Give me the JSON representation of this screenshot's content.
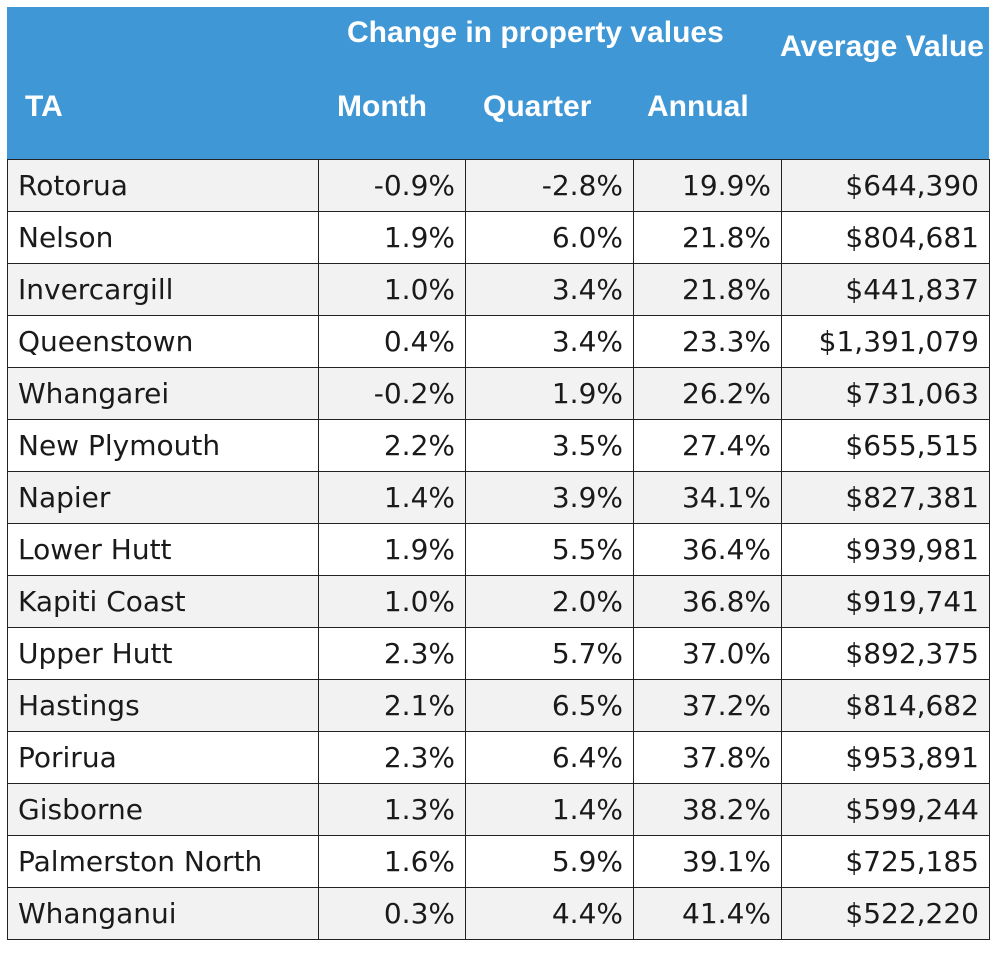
{
  "header": {
    "group_label": "Change in property values",
    "col_ta": "TA",
    "col_month": "Month",
    "col_quarter": "Quarter",
    "col_annual": "Annual",
    "col_average": "Average Value"
  },
  "rows": [
    {
      "ta": "Rotorua",
      "month": "-0.9%",
      "quarter": "-2.8%",
      "annual": "19.9%",
      "value": "$644,390"
    },
    {
      "ta": "Nelson",
      "month": "1.9%",
      "quarter": "6.0%",
      "annual": "21.8%",
      "value": "$804,681"
    },
    {
      "ta": "Invercargill",
      "month": "1.0%",
      "quarter": "3.4%",
      "annual": "21.8%",
      "value": "$441,837"
    },
    {
      "ta": "Queenstown",
      "month": "0.4%",
      "quarter": "3.4%",
      "annual": "23.3%",
      "value": "$1,391,079"
    },
    {
      "ta": "Whangarei",
      "month": "-0.2%",
      "quarter": "1.9%",
      "annual": "26.2%",
      "value": "$731,063"
    },
    {
      "ta": "New Plymouth",
      "month": "2.2%",
      "quarter": "3.5%",
      "annual": "27.4%",
      "value": "$655,515"
    },
    {
      "ta": "Napier",
      "month": "1.4%",
      "quarter": "3.9%",
      "annual": "34.1%",
      "value": "$827,381"
    },
    {
      "ta": "Lower Hutt",
      "month": "1.9%",
      "quarter": "5.5%",
      "annual": "36.4%",
      "value": "$939,981"
    },
    {
      "ta": "Kapiti Coast",
      "month": "1.0%",
      "quarter": "2.0%",
      "annual": "36.8%",
      "value": "$919,741"
    },
    {
      "ta": "Upper Hutt",
      "month": "2.3%",
      "quarter": "5.7%",
      "annual": "37.0%",
      "value": "$892,375"
    },
    {
      "ta": "Hastings",
      "month": "2.1%",
      "quarter": "6.5%",
      "annual": "37.2%",
      "value": "$814,682"
    },
    {
      "ta": "Porirua",
      "month": "2.3%",
      "quarter": "6.4%",
      "annual": "37.8%",
      "value": "$953,891"
    },
    {
      "ta": "Gisborne",
      "month": "1.3%",
      "quarter": "1.4%",
      "annual": "38.2%",
      "value": "$599,244"
    },
    {
      "ta": "Palmerston North",
      "month": "1.6%",
      "quarter": "5.9%",
      "annual": "39.1%",
      "value": "$725,185"
    },
    {
      "ta": "Whanganui",
      "month": "0.3%",
      "quarter": "4.4%",
      "annual": "41.4%",
      "value": "$522,220"
    }
  ],
  "colors": {
    "header_bg": "#3f97d5",
    "header_text": "#ffffff",
    "row_alt_bg": "#f2f2f2"
  }
}
